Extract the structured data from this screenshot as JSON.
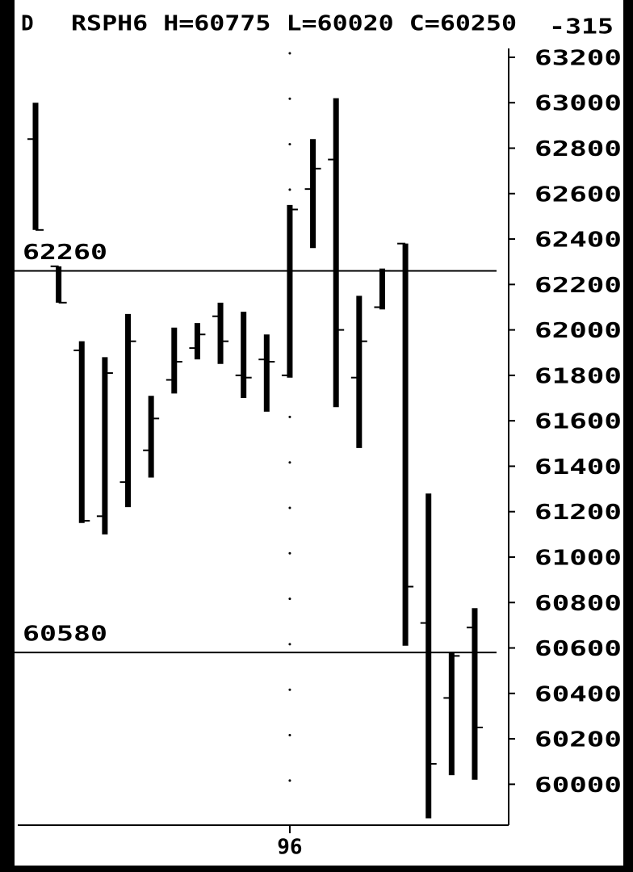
{
  "chart_data": {
    "type": "ohlc",
    "symbol_prefix": "D",
    "title": "RSPH6 H=60775 L=60020 C=60250",
    "change": "-315",
    "categories": [
      null,
      null,
      null,
      null,
      null,
      null,
      null,
      null,
      null,
      null,
      null,
      "96",
      null,
      null,
      null,
      null,
      null,
      null,
      null,
      null
    ],
    "series": [
      {
        "color": "#000000",
        "open": [
          62840,
          62280,
          61910,
          61180,
          61330,
          61470,
          61780,
          61920,
          62060,
          61800,
          61870,
          61800,
          62620,
          62750,
          61790,
          62100,
          62380,
          60710,
          60380,
          60690
        ],
        "high": [
          63000,
          62280,
          61950,
          61880,
          62070,
          61710,
          62010,
          62030,
          62120,
          62080,
          61980,
          62550,
          62840,
          63020,
          62150,
          62270,
          62380,
          61280,
          60580,
          60775
        ],
        "low": [
          62440,
          62120,
          61150,
          61100,
          61220,
          61350,
          61720,
          61870,
          61850,
          61700,
          61640,
          61790,
          62360,
          61660,
          61480,
          62090,
          60610,
          59850,
          60040,
          60020
        ],
        "close": [
          62440,
          62120,
          61160,
          61810,
          61950,
          61610,
          61860,
          61980,
          61950,
          61790,
          61860,
          62530,
          62710,
          62000,
          61950,
          62260,
          60870,
          60090,
          60565,
          60250
        ]
      }
    ],
    "hlines": [
      {
        "value": 62260,
        "label": "62260"
      },
      {
        "value": 60580,
        "label": "60580"
      }
    ],
    "ylim": [
      59820,
      63310
    ],
    "yticks": [
      60000,
      60200,
      60400,
      60600,
      60800,
      61000,
      61200,
      61400,
      61600,
      61800,
      62000,
      62200,
      62400,
      62600,
      62800,
      63000,
      63200
    ]
  }
}
